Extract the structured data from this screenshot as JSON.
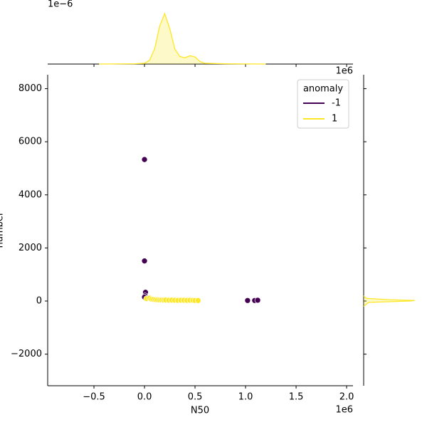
{
  "chart_data": {
    "type": "scatter",
    "xlabel": "N50",
    "ylabel": "number",
    "x_offset_label": "1e6",
    "xlim": [
      -0.958,
      2.063
    ],
    "ylim": [
      -3190,
      8525
    ],
    "xticks": [
      {
        "value": -0.5,
        "label": "−0.5"
      },
      {
        "value": 0,
        "label": "0.0"
      },
      {
        "value": 0.5,
        "label": "0.5"
      },
      {
        "value": 1,
        "label": "1.0"
      },
      {
        "value": 1.5,
        "label": "1.5"
      },
      {
        "value": 2,
        "label": "2.0"
      }
    ],
    "yticks": [
      {
        "value": -2000,
        "label": "−2000"
      },
      0,
      2000,
      4000,
      6000,
      8000
    ],
    "legend_title": "anomaly",
    "legend_corner": "upper right",
    "series": [
      {
        "name": "-1",
        "color": "#440154",
        "x": [
          0,
          0,
          0.01,
          0.005,
          0,
          1.02,
          1.09,
          1.12
        ],
        "values": [
          5330,
          1510,
          330,
          200,
          150,
          20,
          20,
          30
        ]
      },
      {
        "name": "1",
        "color": "#fde725",
        "x": [
          0.02,
          0.05,
          0.07,
          0.09,
          0.11,
          0.13,
          0.15,
          0.17,
          0.19,
          0.21,
          0.24,
          0.27,
          0.3,
          0.33,
          0.36,
          0.39,
          0.42,
          0.45,
          0.48,
          0.5,
          0.53
        ],
        "values": [
          90,
          110,
          70,
          60,
          50,
          45,
          40,
          40,
          35,
          38,
          30,
          35,
          30,
          25,
          30,
          28,
          25,
          30,
          25,
          20,
          20
        ]
      }
    ],
    "marginal_x": {
      "type": "kde",
      "offset_label": "1e−6",
      "color": "#fde725",
      "ylim": [
        0,
        2.2
      ],
      "x": [
        -0.45,
        -0.1,
        0,
        0.05,
        0.1,
        0.15,
        0.2,
        0.25,
        0.3,
        0.35,
        0.4,
        0.45,
        0.5,
        0.55,
        0.6,
        0.8,
        1.2
      ],
      "values": [
        0,
        0.01,
        0.03,
        0.15,
        0.6,
        1.5,
        2.0,
        1.4,
        0.6,
        0.3,
        0.25,
        0.33,
        0.28,
        0.1,
        0.03,
        0.01,
        0
      ]
    },
    "marginal_y": {
      "type": "kde",
      "color": "#fde725",
      "xlim": [
        0,
        2.2
      ],
      "y": [
        -200,
        -50,
        0,
        20,
        50,
        100,
        200
      ],
      "values": [
        0,
        0.2,
        1.8,
        2.0,
        1.0,
        0.1,
        0
      ]
    }
  }
}
